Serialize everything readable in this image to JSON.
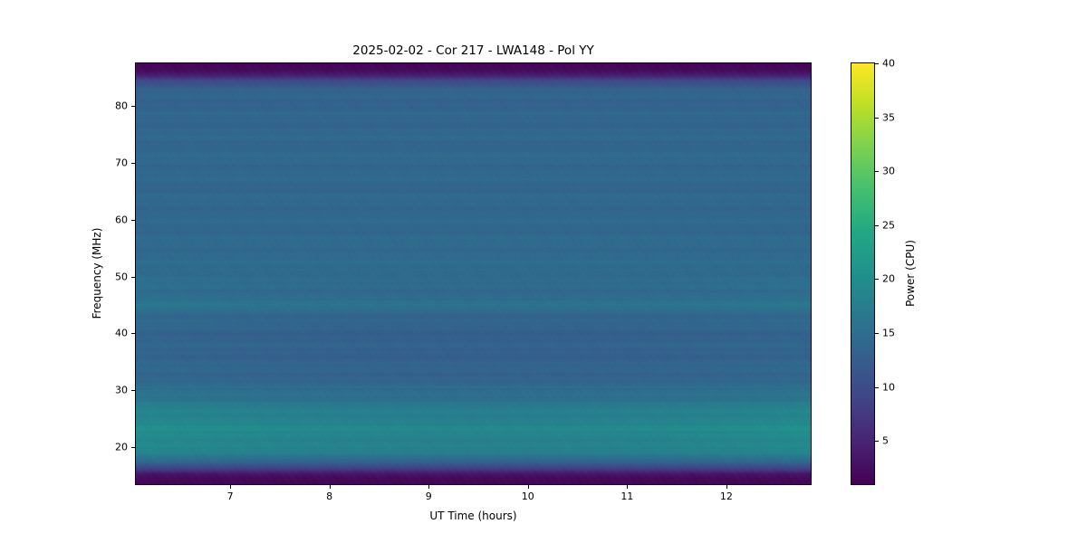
{
  "chart_data": {
    "type": "heatmap",
    "title": "2025-02-02 - Cor 217 - LWA148 - Pol YY",
    "xlabel": "UT Time (hours)",
    "ylabel": "Frequency (MHz)",
    "colorbar_label": "Power (CPU)",
    "x_range": [
      6.05,
      12.85
    ],
    "x_ticks": [
      7,
      8,
      9,
      10,
      11,
      12
    ],
    "y_range": [
      13.5,
      87.5
    ],
    "y_ticks": [
      20,
      30,
      40,
      50,
      60,
      70,
      80
    ],
    "color_range": [
      1,
      40
    ],
    "colorbar_ticks": [
      5,
      10,
      15,
      20,
      25,
      30,
      35,
      40
    ],
    "colormap": "viridis",
    "legend_position": "right-colorbar",
    "grid": false,
    "colormap_stops": [
      [
        0.0,
        "#440154"
      ],
      [
        0.1,
        "#482475"
      ],
      [
        0.2,
        "#414487"
      ],
      [
        0.3,
        "#355f8d"
      ],
      [
        0.4,
        "#2a788e"
      ],
      [
        0.5,
        "#21918c"
      ],
      [
        0.6,
        "#22a884"
      ],
      [
        0.7,
        "#44bf70"
      ],
      [
        0.8,
        "#7ad151"
      ],
      [
        0.9,
        "#bddf26"
      ],
      [
        1.0,
        "#fde725"
      ]
    ],
    "frequency_profile": [
      [
        13.5,
        1.5
      ],
      [
        14.5,
        2.0
      ],
      [
        15.3,
        3.5
      ],
      [
        16.0,
        7.0
      ],
      [
        17.0,
        12.0
      ],
      [
        18.0,
        15.5
      ],
      [
        19.5,
        17.5
      ],
      [
        21.0,
        18.5
      ],
      [
        24.0,
        18.5
      ],
      [
        26.0,
        17.5
      ],
      [
        28.0,
        15.8
      ],
      [
        30.0,
        14.8
      ],
      [
        33.0,
        14.0
      ],
      [
        36.0,
        13.6
      ],
      [
        40.0,
        13.6
      ],
      [
        43.0,
        14.2
      ],
      [
        44.5,
        16.2
      ],
      [
        45.5,
        15.6
      ],
      [
        48.0,
        15.0
      ],
      [
        52.0,
        14.6
      ],
      [
        56.0,
        14.3
      ],
      [
        60.0,
        14.1
      ],
      [
        65.0,
        13.9
      ],
      [
        70.0,
        14.1
      ],
      [
        75.0,
        13.9
      ],
      [
        80.0,
        13.6
      ],
      [
        83.0,
        13.2
      ],
      [
        84.5,
        10.0
      ],
      [
        85.3,
        5.0
      ],
      [
        86.2,
        2.2
      ],
      [
        87.5,
        1.6
      ]
    ],
    "time_variation_note": "slightly brighter teal at left/right edges below 30 MHz; slightly darker blue mid-time between 30 and 50 MHz; dark purple bands at top (85-87 MHz) and bottom (13-15 MHz)"
  }
}
